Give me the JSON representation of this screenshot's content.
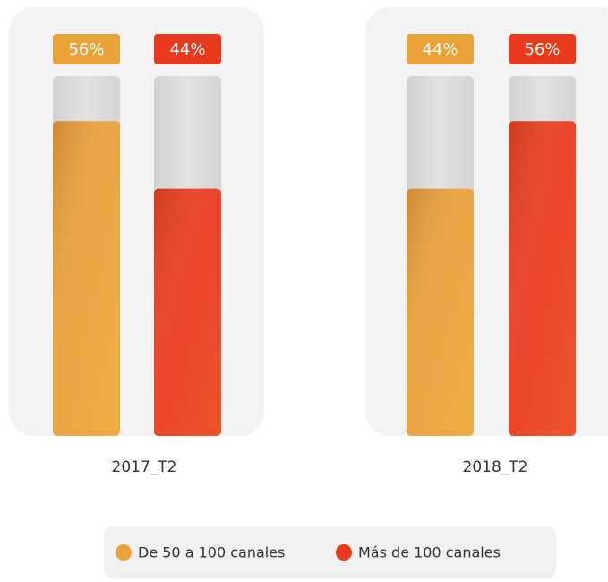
{
  "chart_data": {
    "type": "bar",
    "categories": [
      "2017_T2",
      "2018_T2"
    ],
    "series": [
      {
        "name": "De 50 a 100 canales",
        "color": "#eba13a",
        "values": [
          56,
          44
        ],
        "value_labels": [
          "56%",
          "44%"
        ]
      },
      {
        "name": "Más de 100 canales",
        "color": "#ea3a1e",
        "values": [
          44,
          56
        ],
        "value_labels": [
          "44%",
          "56%"
        ]
      }
    ],
    "ylim": [
      0,
      64
    ]
  }
}
